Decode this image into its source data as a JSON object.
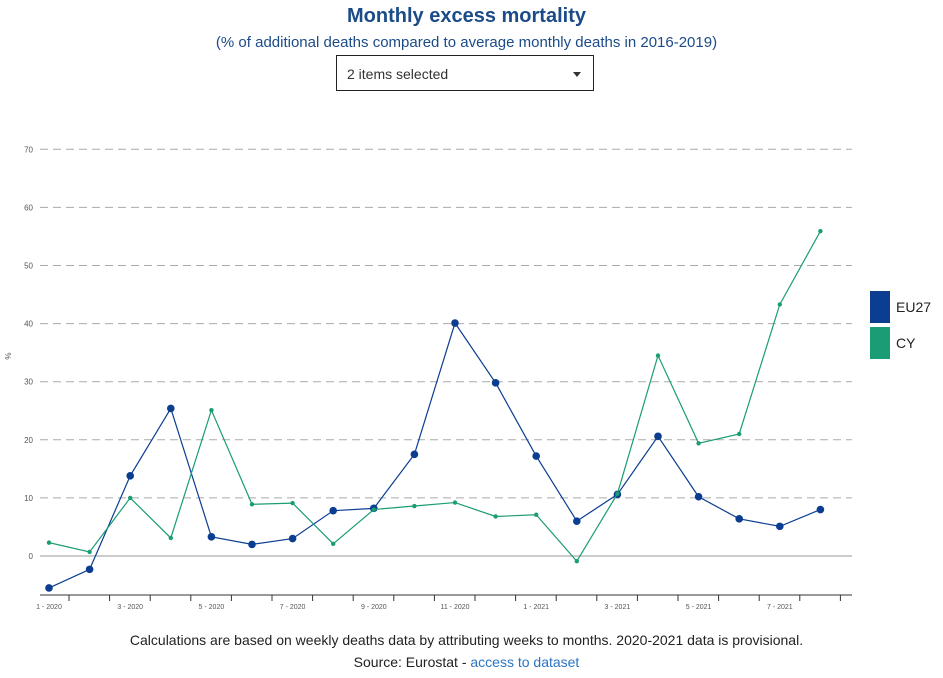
{
  "header": {
    "title": "Monthly excess mortality",
    "subtitle": "(% of additional deaths compared to average monthly deaths in 2016-2019)"
  },
  "selector": {
    "label": "2 items selected",
    "icon": "chevron-down-icon"
  },
  "footer": {
    "note": "Calculations are based on weekly deaths data by attributing weeks to months. 2020-2021 data is provisional.",
    "source_prefix": "Source: Eurostat - ",
    "source_link": "access to dataset"
  },
  "chart_data": {
    "type": "line",
    "ylabel": "%",
    "ylim": [
      -6,
      70
    ],
    "yticks": [
      0,
      10,
      20,
      30,
      40,
      50,
      60,
      70
    ],
    "grid": true,
    "legend_position": "right",
    "x": [
      "1 - 2020",
      "2 - 2020",
      "3 - 2020",
      "4 - 2020",
      "5 - 2020",
      "6 - 2020",
      "7 - 2020",
      "8 - 2020",
      "9 - 2020",
      "10 - 2020",
      "11 - 2020",
      "12 - 2020",
      "1 - 2021",
      "2 - 2021",
      "3 - 2021",
      "4 - 2021",
      "5 - 2021",
      "6 - 2021",
      "7 - 2021",
      "8 - 2021"
    ],
    "xtick_labels": [
      "1 - 2020",
      "",
      "3 - 2020",
      "",
      "5 - 2020",
      "",
      "7 - 2020",
      "",
      "9 - 2020",
      "",
      "11 - 2020",
      "",
      "1 - 2021",
      "",
      "3 - 2021",
      "",
      "5 - 2021",
      "",
      "7 - 2021",
      ""
    ],
    "series": [
      {
        "name": "EU27",
        "color": "#0b3d91",
        "values": [
          -5.5,
          -2.3,
          13.8,
          25.4,
          3.3,
          2.0,
          3.0,
          7.8,
          8.2,
          17.5,
          40.1,
          29.8,
          17.2,
          6.0,
          10.6,
          20.6,
          10.2,
          6.4,
          5.1,
          8.0
        ]
      },
      {
        "name": "CY",
        "color": "#1a9c74",
        "values": [
          2.3,
          0.7,
          10.0,
          3.1,
          25.1,
          8.9,
          9.1,
          2.1,
          8.0,
          8.6,
          9.2,
          6.8,
          7.1,
          -0.9,
          10.7,
          34.5,
          19.4,
          21.0,
          43.3,
          55.9
        ]
      }
    ]
  }
}
